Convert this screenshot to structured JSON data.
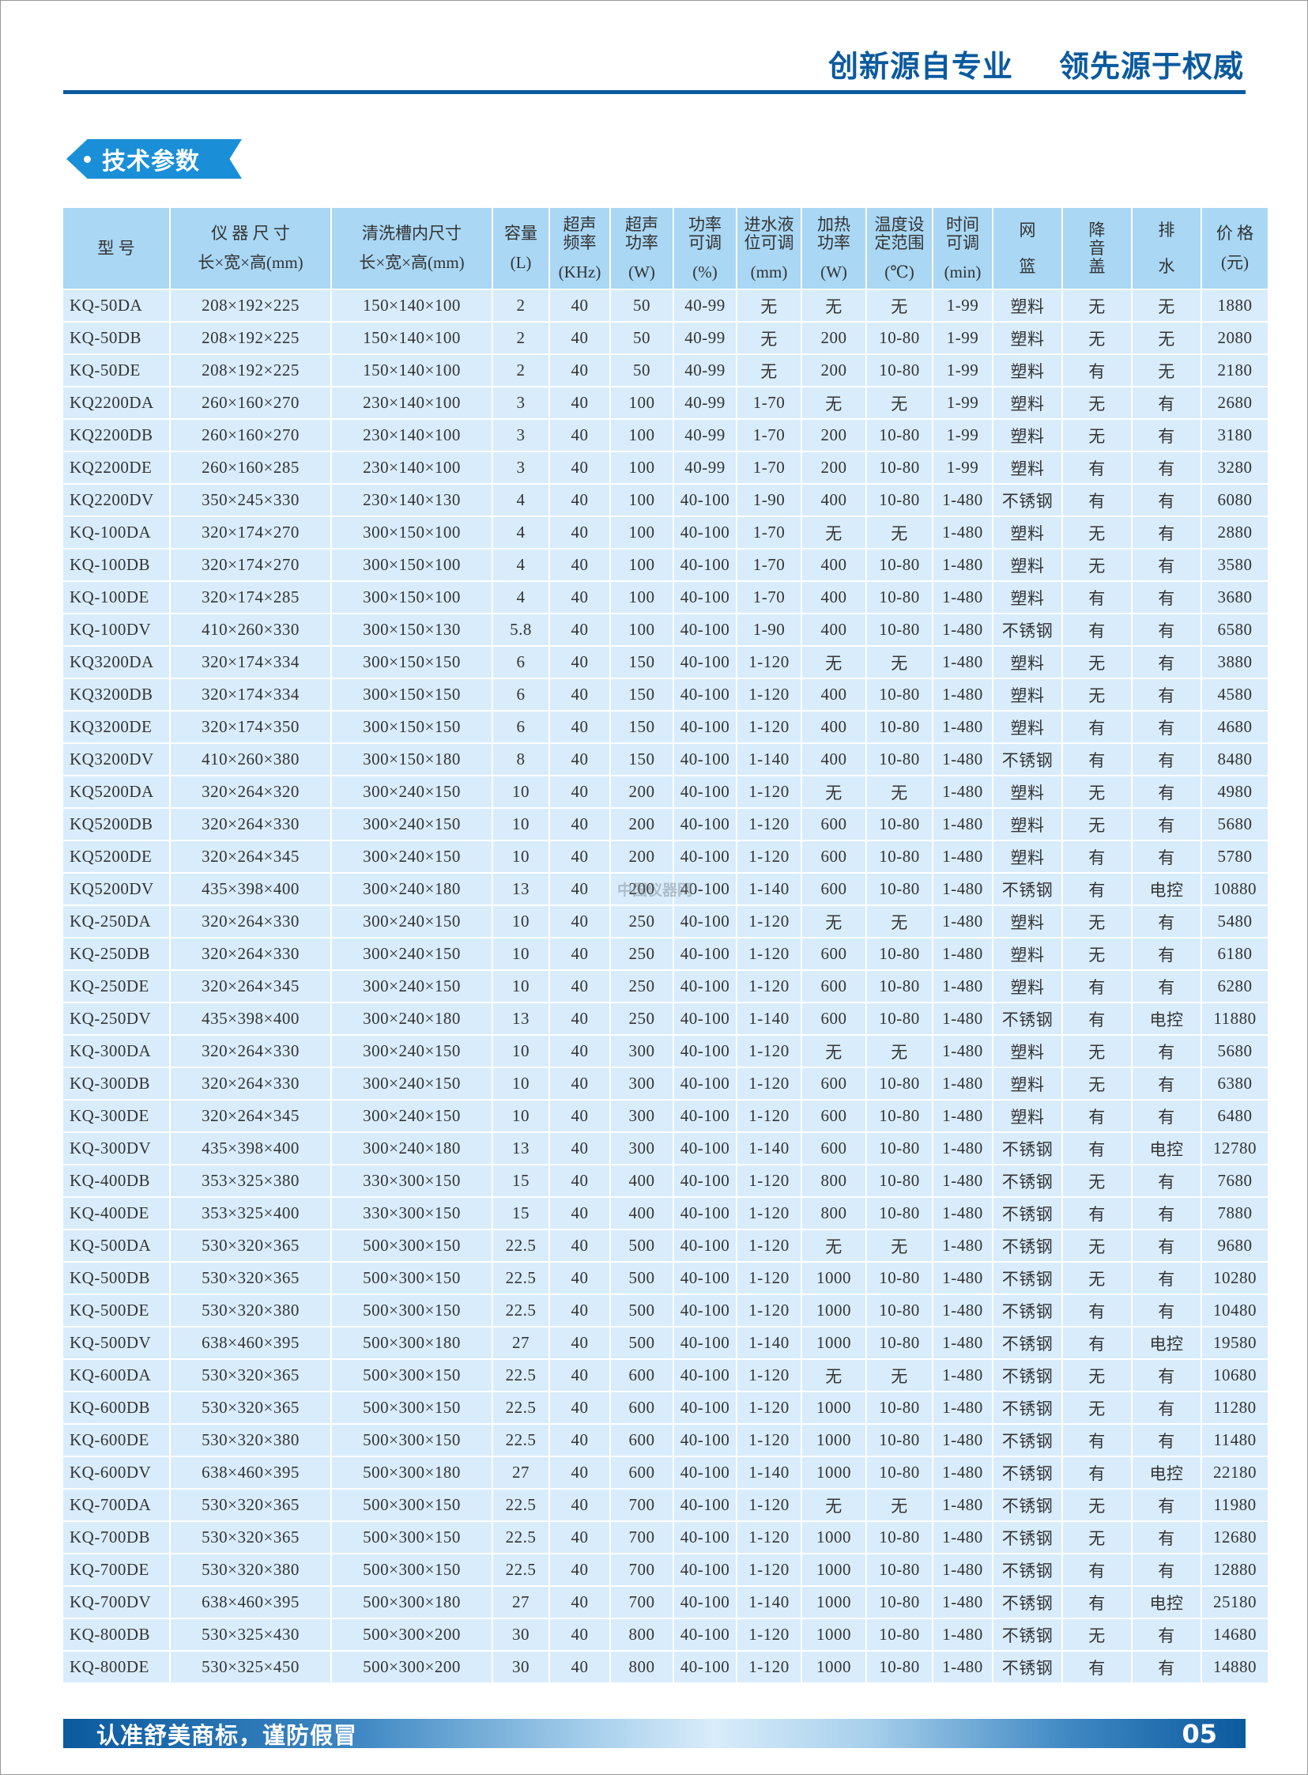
{
  "header": {
    "slogan_left": "创新源自专业",
    "slogan_right": "领先源于权威"
  },
  "section_title": "技术参数",
  "colors": {
    "brand": "#0b5a9e",
    "badge": "#1a8fd8",
    "header_cell": "#a9d7f4",
    "row_cell": "#d8ecfb"
  },
  "table": {
    "columns": [
      {
        "top": "型  号",
        "unit": ""
      },
      {
        "top": "仪 器 尺 寸",
        "unit": "长×宽×高(mm)"
      },
      {
        "top": "清洗槽内尺寸",
        "unit": "长×宽×高(mm)"
      },
      {
        "top": "容量",
        "unit": "(L)"
      },
      {
        "top": "超声\n频率",
        "unit": "(KHz)"
      },
      {
        "top": "超声\n功率",
        "unit": "(W)"
      },
      {
        "top": "功率\n可调",
        "unit": "(%)"
      },
      {
        "top": "进水液\n位可调",
        "unit": "(mm)"
      },
      {
        "top": "加热\n功率",
        "unit": "(W)"
      },
      {
        "top": "温度设\n定范围",
        "unit": "(℃)"
      },
      {
        "top": "时间\n可调",
        "unit": "(min)"
      },
      {
        "top": "网\n\n篮",
        "unit": ""
      },
      {
        "top": "降\n音\n盖",
        "unit": ""
      },
      {
        "top": "排\n\n水",
        "unit": ""
      },
      {
        "top": "价 格",
        "unit": "(元)"
      }
    ],
    "rows": [
      [
        "KQ-50DA",
        "208×192×225",
        "150×140×100",
        "2",
        "40",
        "50",
        "40-99",
        "无",
        "无",
        "无",
        "1-99",
        "塑料",
        "无",
        "无",
        "1880"
      ],
      [
        "KQ-50DB",
        "208×192×225",
        "150×140×100",
        "2",
        "40",
        "50",
        "40-99",
        "无",
        "200",
        "10-80",
        "1-99",
        "塑料",
        "无",
        "无",
        "2080"
      ],
      [
        "KQ-50DE",
        "208×192×225",
        "150×140×100",
        "2",
        "40",
        "50",
        "40-99",
        "无",
        "200",
        "10-80",
        "1-99",
        "塑料",
        "有",
        "无",
        "2180"
      ],
      [
        "KQ2200DA",
        "260×160×270",
        "230×140×100",
        "3",
        "40",
        "100",
        "40-99",
        "1-70",
        "无",
        "无",
        "1-99",
        "塑料",
        "无",
        "有",
        "2680"
      ],
      [
        "KQ2200DB",
        "260×160×270",
        "230×140×100",
        "3",
        "40",
        "100",
        "40-99",
        "1-70",
        "200",
        "10-80",
        "1-99",
        "塑料",
        "无",
        "有",
        "3180"
      ],
      [
        "KQ2200DE",
        "260×160×285",
        "230×140×100",
        "3",
        "40",
        "100",
        "40-99",
        "1-70",
        "200",
        "10-80",
        "1-99",
        "塑料",
        "有",
        "有",
        "3280"
      ],
      [
        "KQ2200DV",
        "350×245×330",
        "230×140×130",
        "4",
        "40",
        "100",
        "40-100",
        "1-90",
        "400",
        "10-80",
        "1-480",
        "不锈钢",
        "有",
        "有",
        "6080"
      ],
      [
        "KQ-100DA",
        "320×174×270",
        "300×150×100",
        "4",
        "40",
        "100",
        "40-100",
        "1-70",
        "无",
        "无",
        "1-480",
        "塑料",
        "无",
        "有",
        "2880"
      ],
      [
        "KQ-100DB",
        "320×174×270",
        "300×150×100",
        "4",
        "40",
        "100",
        "40-100",
        "1-70",
        "400",
        "10-80",
        "1-480",
        "塑料",
        "无",
        "有",
        "3580"
      ],
      [
        "KQ-100DE",
        "320×174×285",
        "300×150×100",
        "4",
        "40",
        "100",
        "40-100",
        "1-70",
        "400",
        "10-80",
        "1-480",
        "塑料",
        "有",
        "有",
        "3680"
      ],
      [
        "KQ-100DV",
        "410×260×330",
        "300×150×130",
        "5.8",
        "40",
        "100",
        "40-100",
        "1-90",
        "400",
        "10-80",
        "1-480",
        "不锈钢",
        "有",
        "有",
        "6580"
      ],
      [
        "KQ3200DA",
        "320×174×334",
        "300×150×150",
        "6",
        "40",
        "150",
        "40-100",
        "1-120",
        "无",
        "无",
        "1-480",
        "塑料",
        "无",
        "有",
        "3880"
      ],
      [
        "KQ3200DB",
        "320×174×334",
        "300×150×150",
        "6",
        "40",
        "150",
        "40-100",
        "1-120",
        "400",
        "10-80",
        "1-480",
        "塑料",
        "无",
        "有",
        "4580"
      ],
      [
        "KQ3200DE",
        "320×174×350",
        "300×150×150",
        "6",
        "40",
        "150",
        "40-100",
        "1-120",
        "400",
        "10-80",
        "1-480",
        "塑料",
        "有",
        "有",
        "4680"
      ],
      [
        "KQ3200DV",
        "410×260×380",
        "300×150×180",
        "8",
        "40",
        "150",
        "40-100",
        "1-140",
        "400",
        "10-80",
        "1-480",
        "不锈钢",
        "有",
        "有",
        "8480"
      ],
      [
        "KQ5200DA",
        "320×264×320",
        "300×240×150",
        "10",
        "40",
        "200",
        "40-100",
        "1-120",
        "无",
        "无",
        "1-480",
        "塑料",
        "无",
        "有",
        "4980"
      ],
      [
        "KQ5200DB",
        "320×264×330",
        "300×240×150",
        "10",
        "40",
        "200",
        "40-100",
        "1-120",
        "600",
        "10-80",
        "1-480",
        "塑料",
        "无",
        "有",
        "5680"
      ],
      [
        "KQ5200DE",
        "320×264×345",
        "300×240×150",
        "10",
        "40",
        "200",
        "40-100",
        "1-120",
        "600",
        "10-80",
        "1-480",
        "塑料",
        "有",
        "有",
        "5780"
      ],
      [
        "KQ5200DV",
        "435×398×400",
        "300×240×180",
        "13",
        "40",
        "200",
        "40-100",
        "1-140",
        "600",
        "10-80",
        "1-480",
        "不锈钢",
        "有",
        "电控",
        "10880"
      ],
      [
        "KQ-250DA",
        "320×264×330",
        "300×240×150",
        "10",
        "40",
        "250",
        "40-100",
        "1-120",
        "无",
        "无",
        "1-480",
        "塑料",
        "无",
        "有",
        "5480"
      ],
      [
        "KQ-250DB",
        "320×264×330",
        "300×240×150",
        "10",
        "40",
        "250",
        "40-100",
        "1-120",
        "600",
        "10-80",
        "1-480",
        "塑料",
        "无",
        "有",
        "6180"
      ],
      [
        "KQ-250DE",
        "320×264×345",
        "300×240×150",
        "10",
        "40",
        "250",
        "40-100",
        "1-120",
        "600",
        "10-80",
        "1-480",
        "塑料",
        "有",
        "有",
        "6280"
      ],
      [
        "KQ-250DV",
        "435×398×400",
        "300×240×180",
        "13",
        "40",
        "250",
        "40-100",
        "1-140",
        "600",
        "10-80",
        "1-480",
        "不锈钢",
        "有",
        "电控",
        "11880"
      ],
      [
        "KQ-300DA",
        "320×264×330",
        "300×240×150",
        "10",
        "40",
        "300",
        "40-100",
        "1-120",
        "无",
        "无",
        "1-480",
        "塑料",
        "无",
        "有",
        "5680"
      ],
      [
        "KQ-300DB",
        "320×264×330",
        "300×240×150",
        "10",
        "40",
        "300",
        "40-100",
        "1-120",
        "600",
        "10-80",
        "1-480",
        "塑料",
        "无",
        "有",
        "6380"
      ],
      [
        "KQ-300DE",
        "320×264×345",
        "300×240×150",
        "10",
        "40",
        "300",
        "40-100",
        "1-120",
        "600",
        "10-80",
        "1-480",
        "塑料",
        "有",
        "有",
        "6480"
      ],
      [
        "KQ-300DV",
        "435×398×400",
        "300×240×180",
        "13",
        "40",
        "300",
        "40-100",
        "1-140",
        "600",
        "10-80",
        "1-480",
        "不锈钢",
        "有",
        "电控",
        "12780"
      ],
      [
        "KQ-400DB",
        "353×325×380",
        "330×300×150",
        "15",
        "40",
        "400",
        "40-100",
        "1-120",
        "800",
        "10-80",
        "1-480",
        "不锈钢",
        "无",
        "有",
        "7680"
      ],
      [
        "KQ-400DE",
        "353×325×400",
        "330×300×150",
        "15",
        "40",
        "400",
        "40-100",
        "1-120",
        "800",
        "10-80",
        "1-480",
        "不锈钢",
        "有",
        "有",
        "7880"
      ],
      [
        "KQ-500DA",
        "530×320×365",
        "500×300×150",
        "22.5",
        "40",
        "500",
        "40-100",
        "1-120",
        "无",
        "无",
        "1-480",
        "不锈钢",
        "无",
        "有",
        "9680"
      ],
      [
        "KQ-500DB",
        "530×320×365",
        "500×300×150",
        "22.5",
        "40",
        "500",
        "40-100",
        "1-120",
        "1000",
        "10-80",
        "1-480",
        "不锈钢",
        "无",
        "有",
        "10280"
      ],
      [
        "KQ-500DE",
        "530×320×380",
        "500×300×150",
        "22.5",
        "40",
        "500",
        "40-100",
        "1-120",
        "1000",
        "10-80",
        "1-480",
        "不锈钢",
        "有",
        "有",
        "10480"
      ],
      [
        "KQ-500DV",
        "638×460×395",
        "500×300×180",
        "27",
        "40",
        "500",
        "40-100",
        "1-140",
        "1000",
        "10-80",
        "1-480",
        "不锈钢",
        "有",
        "电控",
        "19580"
      ],
      [
        "KQ-600DA",
        "530×320×365",
        "500×300×150",
        "22.5",
        "40",
        "600",
        "40-100",
        "1-120",
        "无",
        "无",
        "1-480",
        "不锈钢",
        "无",
        "有",
        "10680"
      ],
      [
        "KQ-600DB",
        "530×320×365",
        "500×300×150",
        "22.5",
        "40",
        "600",
        "40-100",
        "1-120",
        "1000",
        "10-80",
        "1-480",
        "不锈钢",
        "无",
        "有",
        "11280"
      ],
      [
        "KQ-600DE",
        "530×320×380",
        "500×300×150",
        "22.5",
        "40",
        "600",
        "40-100",
        "1-120",
        "1000",
        "10-80",
        "1-480",
        "不锈钢",
        "有",
        "有",
        "11480"
      ],
      [
        "KQ-600DV",
        "638×460×395",
        "500×300×180",
        "27",
        "40",
        "600",
        "40-100",
        "1-140",
        "1000",
        "10-80",
        "1-480",
        "不锈钢",
        "有",
        "电控",
        "22180"
      ],
      [
        "KQ-700DA",
        "530×320×365",
        "500×300×150",
        "22.5",
        "40",
        "700",
        "40-100",
        "1-120",
        "无",
        "无",
        "1-480",
        "不锈钢",
        "无",
        "有",
        "11980"
      ],
      [
        "KQ-700DB",
        "530×320×365",
        "500×300×150",
        "22.5",
        "40",
        "700",
        "40-100",
        "1-120",
        "1000",
        "10-80",
        "1-480",
        "不锈钢",
        "无",
        "有",
        "12680"
      ],
      [
        "KQ-700DE",
        "530×320×380",
        "500×300×150",
        "22.5",
        "40",
        "700",
        "40-100",
        "1-120",
        "1000",
        "10-80",
        "1-480",
        "不锈钢",
        "有",
        "有",
        "12880"
      ],
      [
        "KQ-700DV",
        "638×460×395",
        "500×300×180",
        "27",
        "40",
        "700",
        "40-100",
        "1-140",
        "1000",
        "10-80",
        "1-480",
        "不锈钢",
        "有",
        "电控",
        "25180"
      ],
      [
        "KQ-800DB",
        "530×325×430",
        "500×300×200",
        "30",
        "40",
        "800",
        "40-100",
        "1-120",
        "1000",
        "10-80",
        "1-480",
        "不锈钢",
        "无",
        "有",
        "14680"
      ],
      [
        "KQ-800DE",
        "530×325×450",
        "500×300×200",
        "30",
        "40",
        "800",
        "40-100",
        "1-120",
        "1000",
        "10-80",
        "1-480",
        "不锈钢",
        "有",
        "有",
        "14880"
      ]
    ]
  },
  "watermark": "中国仪器网",
  "footer": {
    "slogan": "认准舒美商标，谨防假冒",
    "page_number": "05"
  }
}
